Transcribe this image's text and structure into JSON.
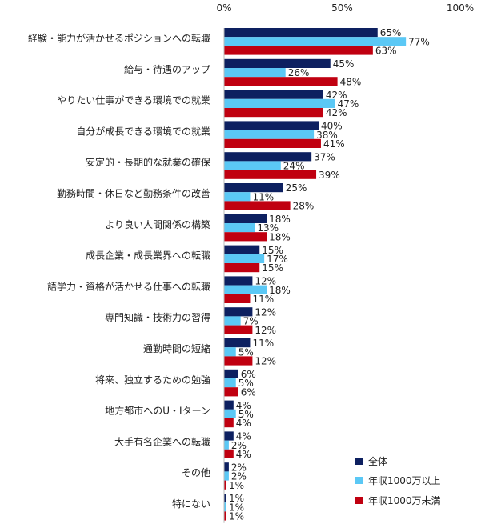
{
  "chart_data": {
    "type": "bar",
    "orientation": "horizontal",
    "xlim": [
      0,
      100
    ],
    "ticks": [
      0,
      50,
      100
    ],
    "tick_labels": [
      "0%",
      "50%",
      "100%"
    ],
    "grid": false,
    "legend_position": "bottom-right",
    "categories": [
      "経験・能力が活かせるポジションへの転職",
      "給与・待遇のアップ",
      "やりたい仕事ができる環境での就業",
      "自分が成長できる環境での就業",
      "安定的・長期的な就業の確保",
      "勤務時間・休日など勤務条件の改善",
      "より良い人間関係の構築",
      "成長企業・成長業界への転職",
      "語学力・資格が活かせる仕事への転職",
      "専門知識・技術力の習得",
      "通勤時間の短縮",
      "将来、独立するための勉強",
      "地方都市へのU・Iターン",
      "大手有名企業への転職",
      "その他",
      "特にない"
    ],
    "series": [
      {
        "name": "全体",
        "color": "#0d2060",
        "values": [
          65,
          45,
          42,
          40,
          37,
          25,
          18,
          15,
          12,
          12,
          11,
          6,
          4,
          4,
          2,
          1
        ],
        "labels": [
          "65%",
          "45%",
          "42%",
          "40%",
          "37%",
          "25%",
          "18%",
          "15%",
          "12%",
          "12%",
          "11%",
          "6%",
          "4%",
          "4%",
          "2%",
          "1%"
        ]
      },
      {
        "name": "年収1000万以上",
        "color": "#5bc8f5",
        "values": [
          77,
          26,
          47,
          38,
          24,
          11,
          13,
          17,
          18,
          7,
          5,
          5,
          5,
          2,
          2,
          1
        ],
        "labels": [
          "77%",
          "26%",
          "47%",
          "38%",
          "24%",
          "11%",
          "13%",
          "17%",
          "18%",
          "7%",
          "5%",
          "5%",
          "5%",
          "2%",
          "2%",
          "1%"
        ]
      },
      {
        "name": "年収1000万未満",
        "color": "#c00010",
        "values": [
          63,
          48,
          42,
          41,
          39,
          28,
          18,
          15,
          11,
          12,
          12,
          6,
          4,
          4,
          1,
          1
        ],
        "labels": [
          "63%",
          "48%",
          "42%",
          "41%",
          "39%",
          "28%",
          "18%",
          "15%",
          "11%",
          "12%",
          "12%",
          "6%",
          "4%",
          "4%",
          "1%",
          "1%"
        ]
      }
    ]
  }
}
